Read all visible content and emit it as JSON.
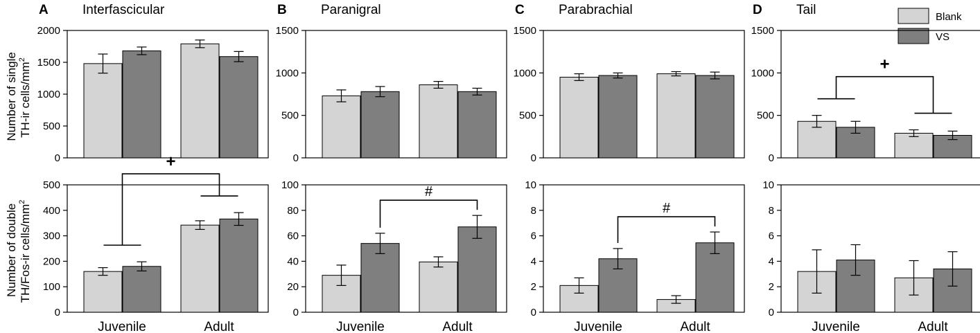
{
  "colors": {
    "blank": "#d4d4d4",
    "vs": "#7f7f7f",
    "stroke": "#000000"
  },
  "legend": [
    {
      "name": "Blank",
      "color": "#d4d4d4"
    },
    {
      "name": "VS",
      "color": "#7f7f7f"
    }
  ],
  "y_labels": {
    "top": [
      "Number of single",
      "TH-ir cells/mm",
      "2"
    ],
    "bottom": [
      "Number of double",
      "TH/Fos-ir cells/mm",
      "2"
    ]
  },
  "chart_data": [
    {
      "type": "bar",
      "panel": "A",
      "title": "Interfascicular",
      "row": "top",
      "categories": [
        "Juvenile",
        "Adult"
      ],
      "ylim": [
        0,
        2000
      ],
      "yticks": [
        0,
        500,
        1000,
        1500,
        2000
      ],
      "series": [
        {
          "name": "Blank",
          "values": [
            1480,
            1790
          ],
          "errors": [
            150,
            60
          ]
        },
        {
          "name": "VS",
          "values": [
            1680,
            1590
          ],
          "errors": [
            60,
            80
          ]
        }
      ]
    },
    {
      "type": "bar",
      "panel": "B",
      "title": "Paranigral",
      "row": "top",
      "categories": [
        "Juvenile",
        "Adult"
      ],
      "ylim": [
        0,
        1500
      ],
      "yticks": [
        0,
        500,
        1000,
        1500
      ],
      "series": [
        {
          "name": "Blank",
          "values": [
            730,
            860
          ],
          "errors": [
            70,
            40
          ]
        },
        {
          "name": "VS",
          "values": [
            780,
            780
          ],
          "errors": [
            60,
            40
          ]
        }
      ]
    },
    {
      "type": "bar",
      "panel": "C",
      "title": "Parabrachial",
      "row": "top",
      "categories": [
        "Juvenile",
        "Adult"
      ],
      "ylim": [
        0,
        1500
      ],
      "yticks": [
        0,
        500,
        1000,
        1500
      ],
      "series": [
        {
          "name": "Blank",
          "values": [
            950,
            990
          ],
          "errors": [
            40,
            25
          ]
        },
        {
          "name": "VS",
          "values": [
            970,
            970
          ],
          "errors": [
            30,
            40
          ]
        }
      ]
    },
    {
      "type": "bar",
      "panel": "D",
      "title": "Tail",
      "row": "top",
      "categories": [
        "Juvenile",
        "Adult"
      ],
      "ylim": [
        0,
        1500
      ],
      "yticks": [
        0,
        500,
        1000,
        1500
      ],
      "series": [
        {
          "name": "Blank",
          "values": [
            430,
            290
          ],
          "errors": [
            70,
            40
          ]
        },
        {
          "name": "VS",
          "values": [
            360,
            265
          ],
          "errors": [
            70,
            50
          ]
        }
      ],
      "annotation": {
        "symbol": "+",
        "type": "age"
      }
    },
    {
      "type": "bar",
      "panel": "A",
      "row": "bottom",
      "categories": [
        "Juvenile",
        "Adult"
      ],
      "ylim": [
        0,
        500
      ],
      "yticks": [
        0,
        100,
        200,
        300,
        400,
        500
      ],
      "series": [
        {
          "name": "Blank",
          "values": [
            160,
            342
          ],
          "errors": [
            15,
            17
          ]
        },
        {
          "name": "VS",
          "values": [
            180,
            366
          ],
          "errors": [
            18,
            25
          ]
        }
      ],
      "annotation": {
        "symbol": "+",
        "type": "age"
      }
    },
    {
      "type": "bar",
      "panel": "B",
      "row": "bottom",
      "categories": [
        "Juvenile",
        "Adult"
      ],
      "ylim": [
        0,
        100
      ],
      "yticks": [
        0,
        20,
        40,
        60,
        80,
        100
      ],
      "series": [
        {
          "name": "Blank",
          "values": [
            29,
            39.5
          ],
          "errors": [
            8,
            4
          ]
        },
        {
          "name": "VS",
          "values": [
            54,
            67
          ],
          "errors": [
            8,
            9
          ]
        }
      ],
      "annotation": {
        "symbol": "#",
        "type": "vs"
      }
    },
    {
      "type": "bar",
      "panel": "C",
      "row": "bottom",
      "categories": [
        "Juvenile",
        "Adult"
      ],
      "ylim": [
        0,
        10
      ],
      "yticks": [
        0,
        2,
        4,
        6,
        8,
        10
      ],
      "series": [
        {
          "name": "Blank",
          "values": [
            2.1,
            1.0
          ],
          "errors": [
            0.6,
            0.3
          ]
        },
        {
          "name": "VS",
          "values": [
            4.2,
            5.45
          ],
          "errors": [
            0.8,
            0.85
          ]
        }
      ],
      "annotation": {
        "symbol": "#",
        "type": "vs"
      }
    },
    {
      "type": "bar",
      "panel": "D",
      "row": "bottom",
      "categories": [
        "Juvenile",
        "Adult"
      ],
      "ylim": [
        0,
        10
      ],
      "yticks": [
        0,
        2,
        4,
        6,
        8,
        10
      ],
      "series": [
        {
          "name": "Blank",
          "values": [
            3.2,
            2.7
          ],
          "errors": [
            1.7,
            1.35
          ]
        },
        {
          "name": "VS",
          "values": [
            4.1,
            3.4
          ],
          "errors": [
            1.2,
            1.35
          ]
        }
      ]
    }
  ]
}
